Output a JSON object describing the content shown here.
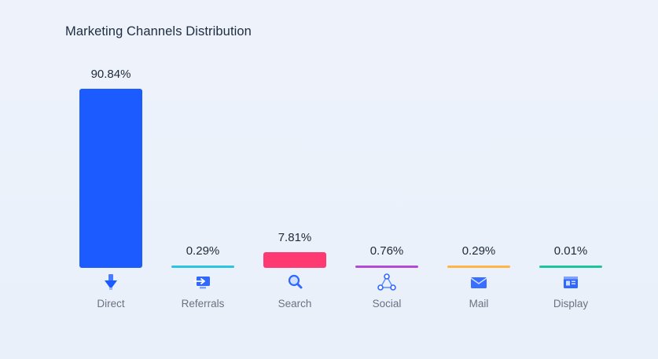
{
  "chart_data": {
    "type": "bar",
    "title": "Marketing Channels Distribution",
    "categories": [
      "Direct",
      "Referrals",
      "Search",
      "Social",
      "Mail",
      "Display"
    ],
    "values": [
      90.84,
      0.29,
      7.81,
      0.76,
      0.29,
      0.01
    ],
    "value_labels": [
      "90.84%",
      "0.29%",
      "7.81%",
      "0.76%",
      "0.29%",
      "0.01%"
    ],
    "colors": [
      "#1c5bff",
      "#2cc4df",
      "#ff3a72",
      "#b04ad8",
      "#ffb547",
      "#1fc49e"
    ],
    "icons": [
      "arrow-down-icon",
      "referral-screen-icon",
      "search-icon",
      "social-network-icon",
      "mail-icon",
      "display-icon"
    ],
    "ylim": [
      0,
      90.84
    ],
    "grid": false,
    "legend": "none"
  }
}
